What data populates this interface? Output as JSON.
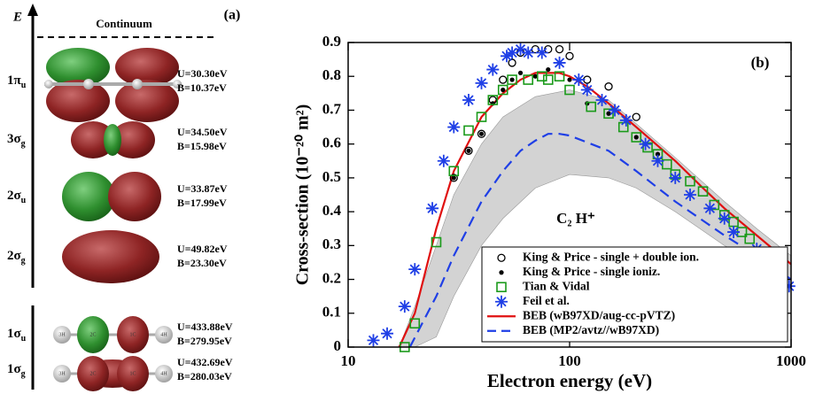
{
  "panel_a": {
    "label": "(a)",
    "axis_label": "E",
    "continuum": "Continuum",
    "atoms": [
      "3H",
      "2C",
      "1C",
      "4H"
    ],
    "orbitals": [
      {
        "sym": "1π",
        "sub": "u",
        "U": "U=30.30eV",
        "B": "B=10.37eV"
      },
      {
        "sym": "3σ",
        "sub": "g",
        "U": "U=34.50eV",
        "B": "B=15.98eV"
      },
      {
        "sym": "2σ",
        "sub": "u",
        "U": "U=33.87eV",
        "B": "B=17.99eV"
      },
      {
        "sym": "2σ",
        "sub": "g",
        "U": "U=49.82eV",
        "B": "B=23.30eV"
      },
      {
        "sym": "1σ",
        "sub": "u",
        "U": "U=433.88eV",
        "B": "B=279.95eV"
      },
      {
        "sym": "1σ",
        "sub": "g",
        "U": "U=432.69eV",
        "B": "B=280.03eV"
      }
    ]
  },
  "chart_data": {
    "type": "scatter",
    "panel_label": "(b)",
    "annotation": "C₂ H⁺",
    "x_label": "Electron energy (eV)",
    "y_label": "Cross-section (10⁻²⁰ m²)",
    "xscale": "log",
    "xlim": [
      10,
      1000
    ],
    "xticks": [
      10,
      100,
      1000
    ],
    "ylim": [
      0,
      0.9
    ],
    "yticks": [
      0,
      0.1,
      0.2,
      0.3,
      0.4,
      0.5,
      0.6,
      0.7,
      0.8,
      0.9
    ],
    "legend": "lower right",
    "band": {
      "color": "#d3d3d3",
      "x": [
        17,
        20,
        25,
        30,
        40,
        50,
        70,
        100,
        150,
        200,
        300,
        500,
        700,
        1000
      ],
      "upper": [
        0,
        0.12,
        0.3,
        0.45,
        0.6,
        0.68,
        0.74,
        0.76,
        0.73,
        0.66,
        0.56,
        0.43,
        0.35,
        0.27
      ],
      "lower": [
        0,
        0.0,
        0.03,
        0.15,
        0.3,
        0.38,
        0.47,
        0.51,
        0.5,
        0.47,
        0.4,
        0.3,
        0.25,
        0.2
      ]
    },
    "series": [
      {
        "name": "King & Price - single + double ion.",
        "color": "#000000",
        "marker": "circle-open",
        "x": [
          30,
          35,
          40,
          45,
          50,
          55,
          60,
          70,
          80,
          90,
          100,
          120,
          150,
          200
        ],
        "values": [
          0.5,
          0.58,
          0.63,
          0.73,
          0.79,
          0.84,
          0.87,
          0.88,
          0.88,
          0.88,
          0.86,
          0.79,
          0.77,
          0.68
        ]
      },
      {
        "name": "King & Price - single ioniz.",
        "color": "#000000",
        "marker": "dot",
        "x": [
          30,
          35,
          40,
          45,
          50,
          55,
          60,
          70,
          80,
          100,
          120,
          150,
          200,
          250
        ],
        "values": [
          0.5,
          0.58,
          0.63,
          0.72,
          0.76,
          0.79,
          0.81,
          0.8,
          0.82,
          0.79,
          0.72,
          0.69,
          0.62,
          0.57
        ]
      },
      {
        "name": "Tian & Vidal",
        "color": "#1a9a1a",
        "marker": "square-open",
        "x": [
          18,
          20,
          25,
          30,
          35,
          40,
          45,
          50,
          55,
          65,
          75,
          80,
          90,
          100,
          125,
          150,
          175,
          200,
          225,
          250,
          275,
          300,
          350,
          400,
          450,
          500,
          550,
          600,
          650
        ],
        "values": [
          0.0,
          0.07,
          0.31,
          0.52,
          0.64,
          0.68,
          0.73,
          0.76,
          0.79,
          0.79,
          0.8,
          0.79,
          0.8,
          0.76,
          0.71,
          0.69,
          0.65,
          0.62,
          0.59,
          0.57,
          0.54,
          0.51,
          0.49,
          0.46,
          0.42,
          0.39,
          0.37,
          0.34,
          0.32
        ]
      },
      {
        "name": "Feil et al.",
        "color": "#1f3fe6",
        "marker": "star",
        "x": [
          13,
          15,
          18,
          20,
          24,
          27,
          30,
          35,
          40,
          45,
          52,
          55,
          60,
          65,
          75,
          90,
          110,
          120,
          140,
          160,
          180,
          220,
          250,
          300,
          350,
          430,
          500,
          550,
          700,
          850,
          980
        ],
        "values": [
          0.02,
          0.04,
          0.12,
          0.23,
          0.41,
          0.55,
          0.65,
          0.73,
          0.78,
          0.82,
          0.86,
          0.87,
          0.88,
          0.87,
          0.87,
          0.84,
          0.79,
          0.76,
          0.73,
          0.7,
          0.67,
          0.6,
          0.55,
          0.5,
          0.45,
          0.41,
          0.38,
          0.34,
          0.29,
          0.23,
          0.18
        ]
      },
      {
        "name": "BEB (wB97XD/aug-cc-pVTZ)",
        "color": "#e01010",
        "marker": "line",
        "x": [
          17,
          20,
          25,
          30,
          40,
          50,
          60,
          70,
          80,
          90,
          100,
          120,
          150,
          200,
          300,
          400,
          500,
          700,
          1000
        ],
        "values": [
          0,
          0.1,
          0.35,
          0.52,
          0.68,
          0.75,
          0.79,
          0.81,
          0.81,
          0.81,
          0.8,
          0.77,
          0.72,
          0.65,
          0.55,
          0.47,
          0.41,
          0.33,
          0.245
        ]
      },
      {
        "name": "BEB (MP2/avtz//wB97XD)",
        "color": "#1f3fe6",
        "marker": "dashed",
        "x": [
          19,
          25,
          30,
          40,
          50,
          60,
          70,
          80,
          90,
          100,
          150,
          200,
          300,
          500,
          700,
          1000
        ],
        "values": [
          0,
          0.15,
          0.27,
          0.43,
          0.52,
          0.58,
          0.61,
          0.63,
          0.63,
          0.625,
          0.58,
          0.52,
          0.43,
          0.33,
          0.27,
          0.2
        ]
      }
    ]
  }
}
